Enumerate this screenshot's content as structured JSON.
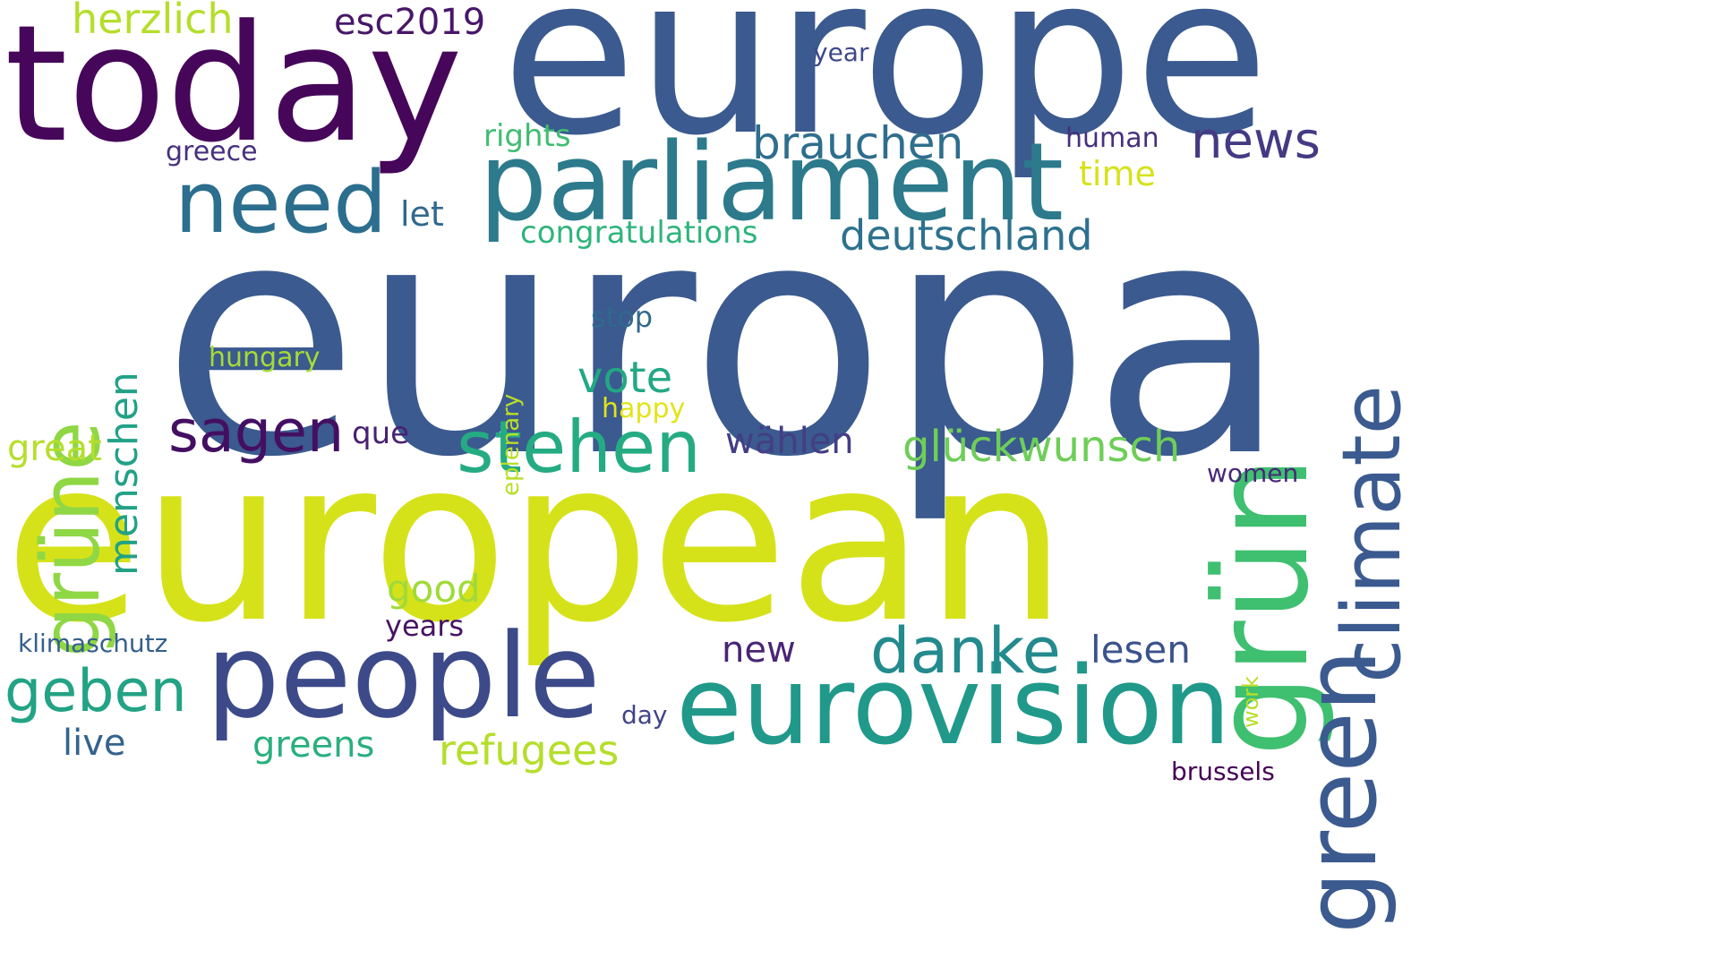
{
  "words": [
    {
      "text": "europa",
      "color": "#3b5a8f"
    },
    {
      "text": "european",
      "color": "#d5e21a"
    },
    {
      "text": "europe",
      "color": "#3b5a8f"
    },
    {
      "text": "today",
      "color": "#46065a"
    },
    {
      "text": "parliament",
      "color": "#2c7a8c"
    },
    {
      "text": "people",
      "color": "#3d4a89"
    },
    {
      "text": "eurovision",
      "color": "#20998a"
    },
    {
      "text": "need",
      "color": "#2c6e8e"
    },
    {
      "text": "grün",
      "color": "#3fbf70"
    },
    {
      "text": "climate",
      "color": "#3b5a8f"
    },
    {
      "text": "green",
      "color": "#3b5a8f"
    },
    {
      "text": "grüne",
      "color": "#8fd744"
    },
    {
      "text": "stehen",
      "color": "#25ab82"
    },
    {
      "text": "danke",
      "color": "#238a8d"
    },
    {
      "text": "geben",
      "color": "#21a384"
    },
    {
      "text": "sagen",
      "color": "#440f62"
    },
    {
      "text": "news",
      "color": "#443a83"
    },
    {
      "text": "brauchen",
      "color": "#2e6e8e"
    },
    {
      "text": "deutschland",
      "color": "#2d718e"
    },
    {
      "text": "glückwunsch",
      "color": "#6ece58"
    },
    {
      "text": "vote",
      "color": "#22a884"
    },
    {
      "text": "menschen",
      "color": "#22a186"
    },
    {
      "text": "herzlich",
      "color": "#b5de2b"
    },
    {
      "text": "esc2019",
      "color": "#481769"
    },
    {
      "text": "wählen",
      "color": "#433e85"
    },
    {
      "text": "refugees",
      "color": "#b5de2b"
    },
    {
      "text": "greens",
      "color": "#29af7f"
    },
    {
      "text": "lesen",
      "color": "#3b528b"
    },
    {
      "text": "good",
      "color": "#a0da39"
    },
    {
      "text": "great",
      "color": "#b5de2b"
    },
    {
      "text": "new",
      "color": "#482576"
    },
    {
      "text": "live",
      "color": "#33638d"
    },
    {
      "text": "congratulations",
      "color": "#2fb47c"
    },
    {
      "text": "let",
      "color": "#31688e"
    },
    {
      "text": "que",
      "color": "#482173"
    },
    {
      "text": "time",
      "color": "#d5e21a"
    },
    {
      "text": "rights",
      "color": "#40bd72"
    },
    {
      "text": "stop",
      "color": "#31688e"
    },
    {
      "text": "hungary",
      "color": "#a5db36"
    },
    {
      "text": "greece",
      "color": "#46307e"
    },
    {
      "text": "human",
      "color": "#46307e"
    },
    {
      "text": "years",
      "color": "#471365"
    },
    {
      "text": "klimaschutz",
      "color": "#355f8d"
    },
    {
      "text": "happy",
      "color": "#e2e418"
    },
    {
      "text": "eplenary",
      "color": "#bade28"
    },
    {
      "text": "year",
      "color": "#3e4989"
    },
    {
      "text": "women",
      "color": "#482878"
    },
    {
      "text": "work",
      "color": "#b8de29"
    },
    {
      "text": "day",
      "color": "#414487"
    },
    {
      "text": "brussels",
      "color": "#440154"
    }
  ]
}
